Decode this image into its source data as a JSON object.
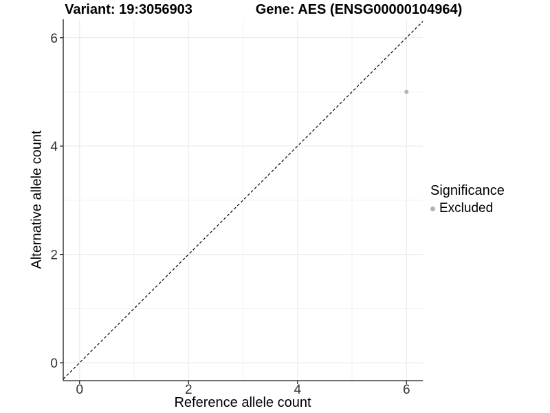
{
  "titles": {
    "variant": "Variant: 19:3056903",
    "gene": "Gene: AES (ENSG00000104964)"
  },
  "axes": {
    "x_label": "Reference allele count",
    "y_label": "Alternative allele count"
  },
  "legend": {
    "title": "Significance",
    "items": [
      {
        "label": "Excluded",
        "color": "#b3b3b3",
        "marker": "circle-icon"
      }
    ]
  },
  "colors": {
    "background": "#ffffff",
    "grid_major": "#e8e8e8",
    "grid_minor": "#f2f2f2",
    "axis_line": "#1a1a1a",
    "tick_label": "#333333",
    "reference_line": "#000000",
    "point": "#b3b3b3"
  },
  "chart_data": {
    "type": "scatter",
    "title_left": "Variant: 19:3056903",
    "title_right": "Gene: AES (ENSG00000104964)",
    "xlabel": "Reference allele count",
    "ylabel": "Alternative allele count",
    "x_ticks": [
      0,
      2,
      4,
      6
    ],
    "y_ticks": [
      0,
      2,
      4,
      6
    ],
    "x_minor_ticks": [
      1,
      3,
      5
    ],
    "y_minor_ticks": [
      1,
      3,
      5
    ],
    "xlim": [
      -0.3,
      6.3
    ],
    "ylim": [
      -0.33,
      6.34
    ],
    "grid": "major+minor",
    "legend_position": "right",
    "legend_title": "Significance",
    "series": [
      {
        "name": "Excluded",
        "color": "#b3b3b3",
        "points": [
          {
            "x": 6,
            "y": 5
          }
        ]
      }
    ],
    "reference_line": {
      "type": "identity y=x",
      "style": "dashed",
      "color": "#000000"
    }
  }
}
